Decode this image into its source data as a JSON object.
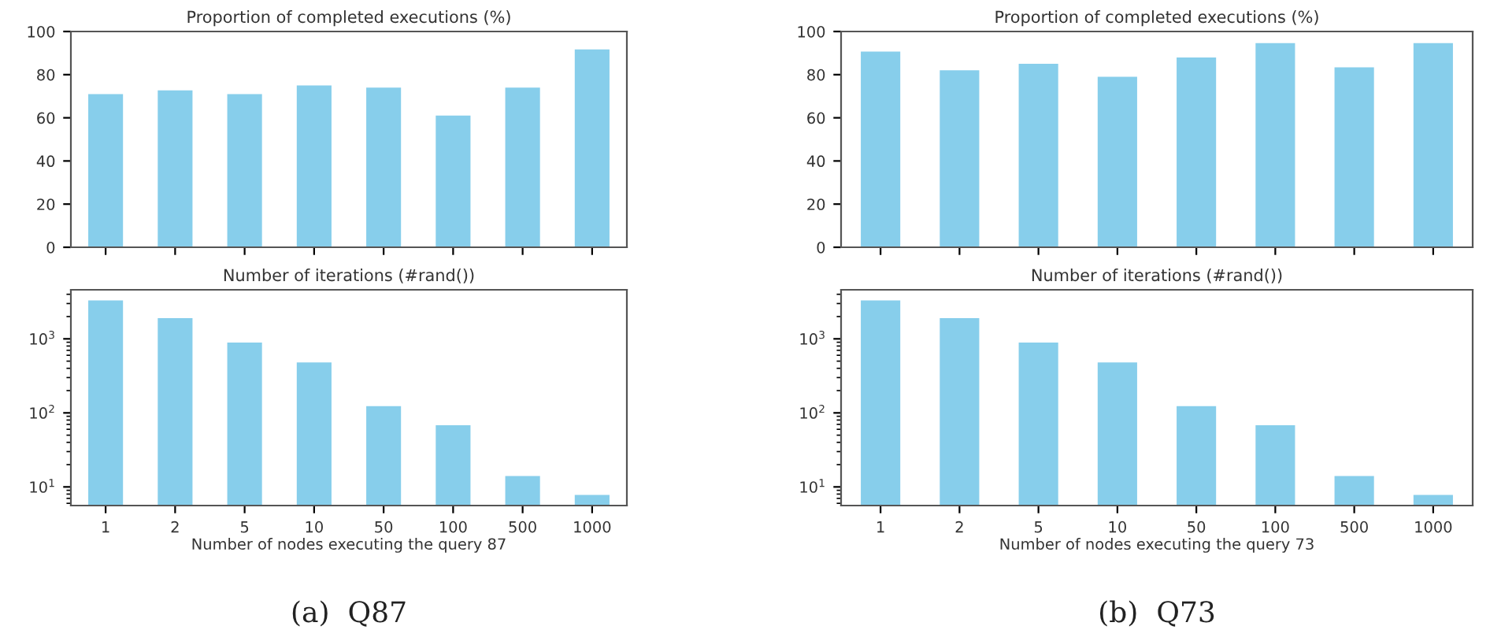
{
  "chart_data": [
    {
      "type": "bar",
      "title": "Proportion of completed executions (%)",
      "categories": [
        "1",
        "2",
        "5",
        "10",
        "50",
        "100",
        "500",
        "1000"
      ],
      "values": [
        71,
        72.7,
        71,
        75,
        74,
        61,
        74,
        91.7
      ],
      "color": "#87ceeb",
      "ylim": [
        0,
        100
      ],
      "yticks": [
        0,
        20,
        40,
        60,
        80,
        100
      ],
      "grid": false,
      "legend": false,
      "tick_labels": "y"
    },
    {
      "type": "bar",
      "title": "Number of iterations (#rand())",
      "xlabel": "Number of nodes executing the query 87",
      "categories": [
        "1",
        "2",
        "5",
        "10",
        "50",
        "100",
        "500",
        "1000"
      ],
      "values": [
        3300,
        1900,
        890,
        480,
        123,
        68,
        14,
        7.8
      ],
      "color": "#87ceeb",
      "log": true,
      "ylim": [
        5.6,
        4600
      ],
      "yticks": [
        {
          "value": 10,
          "label": "10$^{1}$"
        },
        {
          "value": 100,
          "label": "10$^{2}$"
        },
        {
          "value": 1000,
          "label": "10$^{3}$"
        }
      ],
      "grid": false,
      "legend": false,
      "annotations": [
        {
          "text": "(a)  Q87"
        }
      ]
    },
    {
      "type": "bar",
      "title": "Proportion of completed executions (%)",
      "categories": [
        "1",
        "2",
        "5",
        "10",
        "50",
        "100",
        "500",
        "1000"
      ],
      "values": [
        90.7,
        82,
        85,
        79,
        88,
        94.6,
        83.4,
        94.6
      ],
      "color": "#87ceeb",
      "ylim": [
        0,
        100
      ],
      "yticks": [
        0,
        20,
        40,
        60,
        80,
        100
      ],
      "grid": false,
      "legend": false,
      "tick_labels": "y"
    },
    {
      "type": "bar",
      "title": "Number of iterations (#rand())",
      "xlabel": "Number of nodes executing the query 73",
      "categories": [
        "1",
        "2",
        "5",
        "10",
        "50",
        "100",
        "500",
        "1000"
      ],
      "values": [
        3300,
        1900,
        890,
        480,
        123,
        68,
        14,
        7.8
      ],
      "color": "#87ceeb",
      "log": true,
      "ylim": [
        5.6,
        4600
      ],
      "yticks": [
        {
          "value": 10,
          "label": "10$^{1}$"
        },
        {
          "value": 100,
          "label": "10$^{2}$"
        },
        {
          "value": 1000,
          "label": "10$^{3}$"
        }
      ],
      "grid": false,
      "legend": false,
      "annotations": [
        {
          "text": "(b)  Q73"
        }
      ]
    }
  ]
}
